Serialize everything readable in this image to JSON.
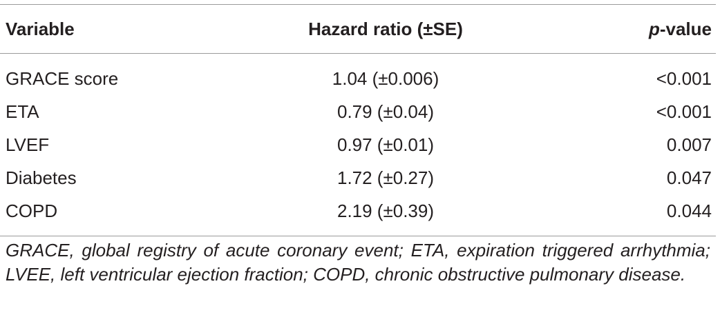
{
  "table": {
    "headers": {
      "variable": "Variable",
      "hazard_ratio": "Hazard ratio (±SE)",
      "p_value_italic": "p",
      "p_value_rest": "-value"
    },
    "rows": [
      {
        "variable": "GRACE score",
        "hazard_ratio": "1.04 (±0.006)",
        "p_value": "<0.001"
      },
      {
        "variable": "ETA",
        "hazard_ratio": "0.79 (±0.04)",
        "p_value": "<0.001"
      },
      {
        "variable": "LVEF",
        "hazard_ratio": "0.97 (±0.01)",
        "p_value": "0.007"
      },
      {
        "variable": "Diabetes",
        "hazard_ratio": "1.72 (±0.27)",
        "p_value": "0.047"
      },
      {
        "variable": "COPD",
        "hazard_ratio": "2.19 (±0.39)",
        "p_value": "0.044"
      }
    ]
  },
  "footnote": "GRACE, global registry of acute coronary event; ETA, expiration triggered arrhythmia; LVEE, left ventricular ejection fraction; COPD, chronic obstructive pulmonary disease."
}
